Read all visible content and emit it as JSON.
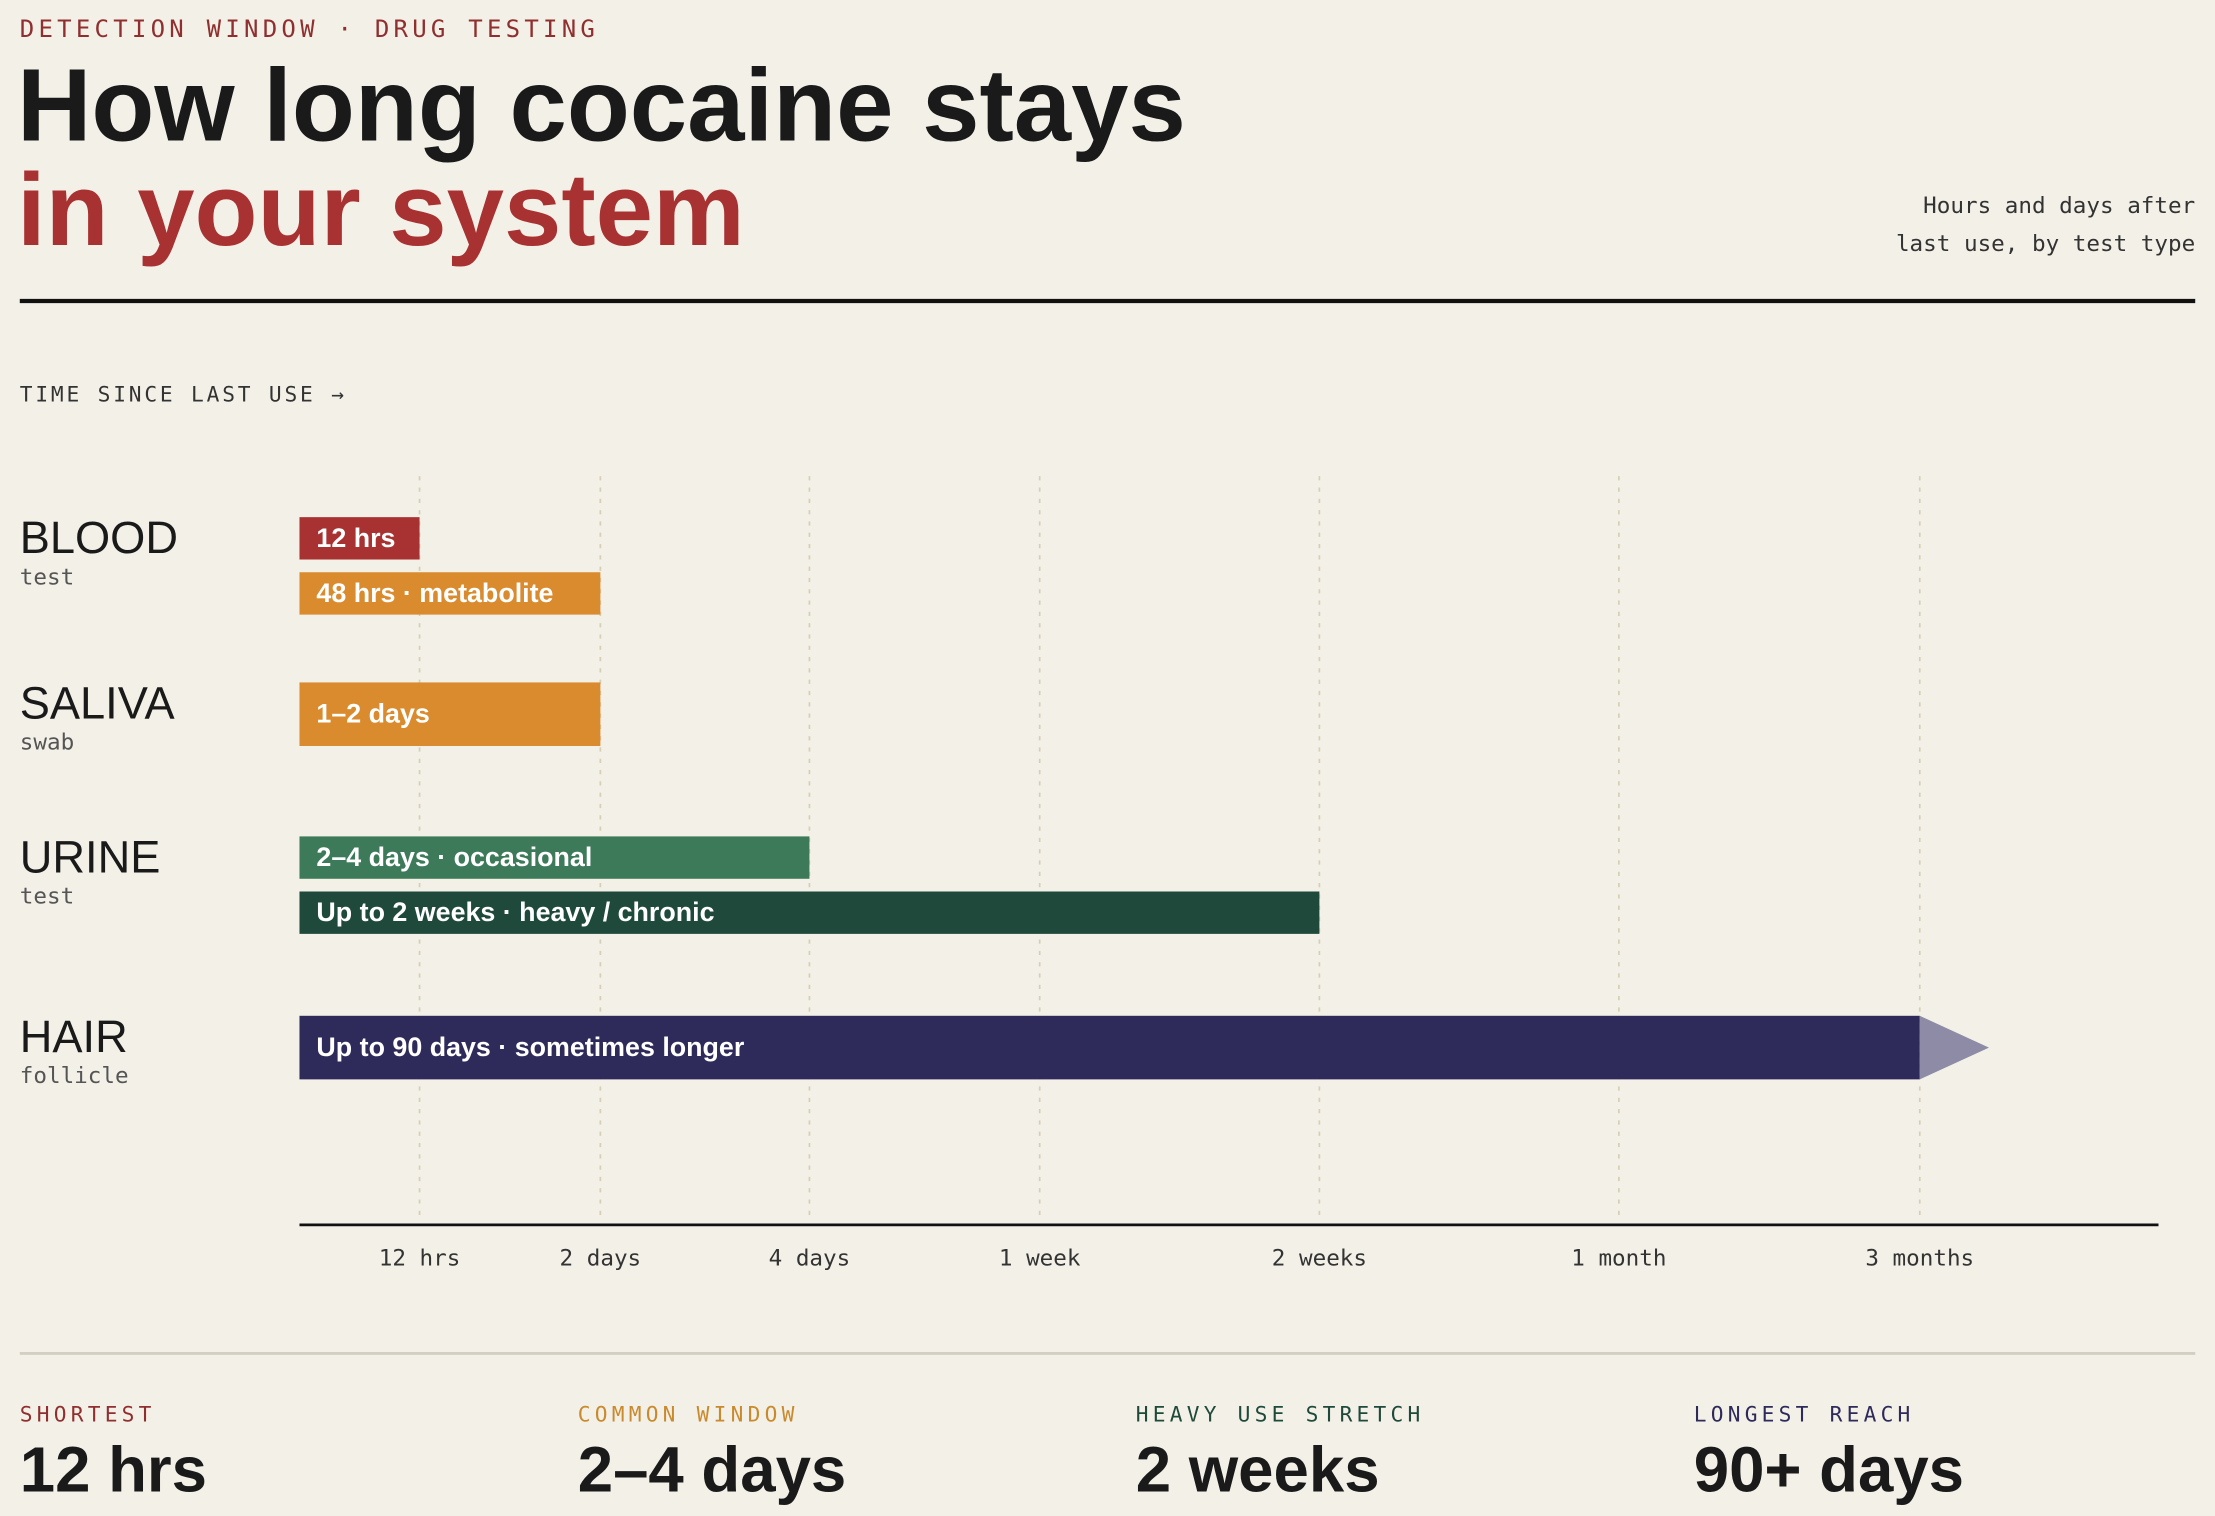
{
  "kicker": "DETECTION WINDOW · DRUG TESTING",
  "title": "How long cocaine stays",
  "title_highlight": "in your system",
  "subtitle": [
    "Hours and days after",
    "last use, by test type"
  ],
  "chart_data": {
    "type": "timeline",
    "x_label": "TIME SINCE LAST USE →",
    "xticks": [
      {
        "value": 12,
        "label": "12 hrs"
      },
      {
        "value": 48,
        "label": "2 days"
      },
      {
        "value": 96,
        "label": "4 days"
      },
      {
        "value": 168,
        "label": "1 week"
      },
      {
        "value": 336,
        "label": "2 weeks"
      },
      {
        "value": 720,
        "label": "1 month"
      },
      {
        "value": 2160,
        "label": "3 months"
      }
    ],
    "grid": true,
    "groups": [
      {
        "name": "BLOOD",
        "sub": "test",
        "bars": [
          {
            "label": "12 hrs",
            "value": 12,
            "color": "#a83232"
          },
          {
            "label": "48 hrs · metabolite",
            "value": 48,
            "color": "#d98b2e"
          }
        ]
      },
      {
        "name": "SALIVA",
        "sub": "swab",
        "bars": [
          {
            "label": "1–2 days",
            "value": 48,
            "color": "#d98b2e"
          }
        ]
      },
      {
        "name": "URINE",
        "sub": "test",
        "bars": [
          {
            "label": "2–4 days · occasional",
            "value": 96,
            "color": "#3d7a5a"
          },
          {
            "label": "Up to 2 weeks · heavy / chronic",
            "value": 336,
            "color": "#1f4a3b"
          }
        ]
      },
      {
        "name": "HAIR",
        "sub": "follicle",
        "bars": [
          {
            "label": "Up to 90 days · sometimes longer",
            "value": 2160,
            "color": "#2e2a5a",
            "arrow": true
          }
        ]
      }
    ]
  },
  "stats": [
    {
      "label": "SHORTEST",
      "value": "12 hrs",
      "color": "#8f2f2f"
    },
    {
      "label": "COMMON WINDOW",
      "value": "2–4 days",
      "color": "#c98a2e"
    },
    {
      "label": "HEAVY USE STRETCH",
      "value": "2 weeks",
      "color": "#1f4a3b"
    },
    {
      "label": "LONGEST REACH",
      "value": "90+ days",
      "color": "#2e2a5a"
    }
  ]
}
